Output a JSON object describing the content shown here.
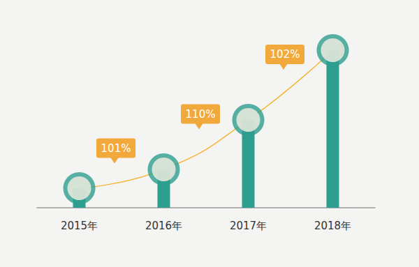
{
  "chart_data": {
    "type": "bar",
    "categories": [
      "2015年",
      "2016年",
      "2017年",
      "2018年"
    ],
    "values": [
      28,
      55,
      126,
      226
    ],
    "color": "#2e9e8f",
    "annotations": [
      "101%",
      "110%",
      "102%"
    ],
    "ylim": [
      0,
      230
    ],
    "grid": false,
    "tick_labels": "x",
    "marker": "circle"
  }
}
